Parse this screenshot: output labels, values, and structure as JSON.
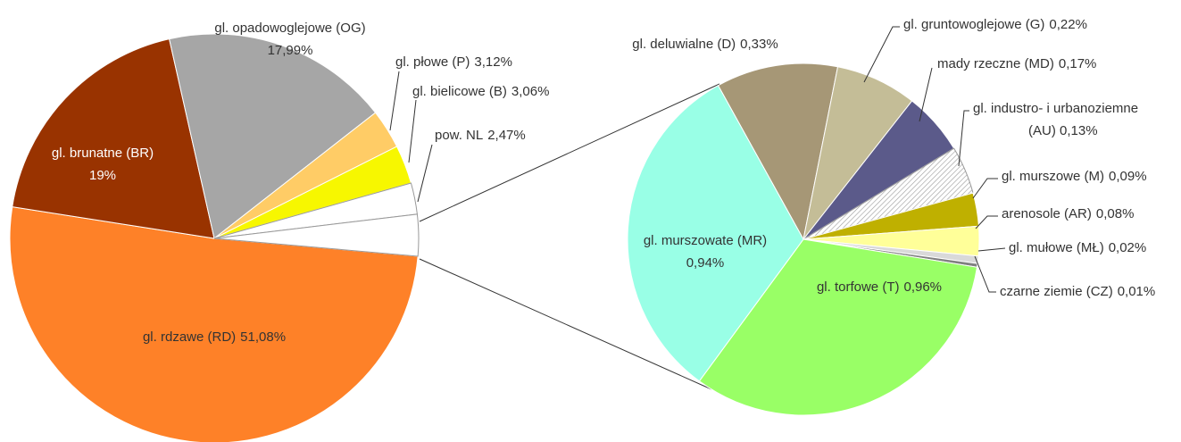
{
  "chart_data": [
    {
      "type": "pie",
      "categories": [
        "gl. rdzawe (RD)",
        "gl. brunatne (BR)",
        "gl. opadowoglejowe (OG)",
        "gl. płowe (P)",
        "gl. bielicowe (B)",
        "pow. NL",
        null
      ],
      "values": [
        51.08,
        19,
        17.99,
        3.12,
        3.06,
        2.47,
        3.28
      ],
      "value_labels": [
        "51,08%",
        "19%",
        "17,99%",
        "3,12%",
        "3,06%",
        "2,47%",
        null
      ],
      "colors": [
        "#fe8128",
        "#993300",
        "#a6a6a6",
        "#ffcc66",
        "#f7f700",
        "#ffffff",
        "#ffffff"
      ]
    },
    {
      "type": "pie",
      "categories": [
        "gl. deluwialne (D)",
        "gl. gruntowoglejowe (G)",
        "mady rzeczne (MD)",
        "gl. industro- i urbanoziemne",
        "gl. murszowe (M)",
        "arenosole (AR)",
        "gl. mułowe (MŁ)",
        "czarne ziemie (CZ)",
        "gl. torfowe (T)",
        "gl. murszowate (MR)"
      ],
      "values": [
        0.33,
        0.22,
        0.17,
        0.13,
        0.09,
        0.08,
        0.02,
        0.01,
        0.96,
        0.94
      ],
      "value_labels": [
        "0,33%",
        "0,22%",
        "0,17%",
        "(AU) 0,13%",
        "0,09%",
        "0,08%",
        "0,02%",
        "0,01%",
        "0,96%",
        "0,94%"
      ],
      "colors": [
        "#a69776",
        "#c4bd97",
        "#5b5a8a",
        "hatched",
        "#bfb000",
        "#ffff99",
        "#d9d9d9",
        "#808080",
        "#99ff66",
        "#99ffe6"
      ]
    }
  ]
}
